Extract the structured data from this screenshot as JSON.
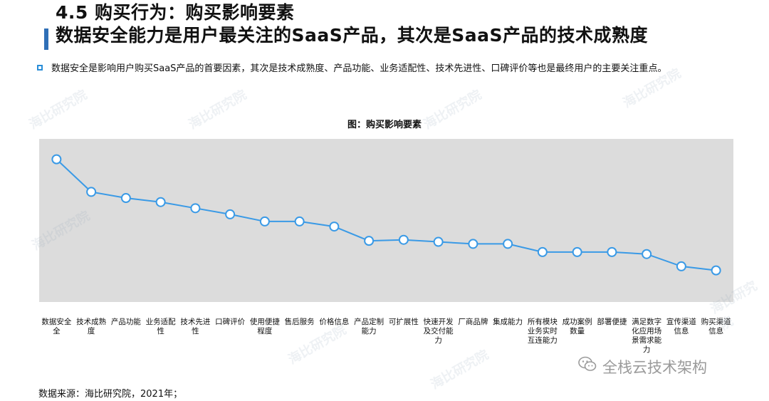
{
  "header": {
    "title_line1": "4.5 购买行为：购买影响要素",
    "title_line2": "数据安全能力是用户最关注的SaaS产品，其次是SaaS产品的技术成熟度"
  },
  "bullet": {
    "text": "数据安全是影响用户购买SaaS产品的首要因素，其次是技术成熟度、产品功能、业务适配性、技术先进性、口碑评价等也是最终用户的主要关注重点。"
  },
  "chart_title": "图：购买影响要素",
  "chart_data": {
    "type": "line",
    "categories": [
      "数据安全全",
      "技术成熟度",
      "产品功能",
      "业务适配性",
      "技术先进性",
      "口碑评价",
      "使用便捷程度",
      "售后服务",
      "价格信息",
      "产品定制能力",
      "可扩展性",
      "快速开发及交付能力",
      "厂商品牌",
      "集成能力",
      "所有模块业务实时互连能力",
      "成功案例数量",
      "部署便捷",
      "满足数字化应用场景需求能力",
      "宣传渠道信息",
      "购买渠道信息"
    ],
    "values": [
      90,
      74,
      71,
      69,
      66,
      63,
      59.5,
      59.5,
      57,
      50,
      50.5,
      49.5,
      48.5,
      48.5,
      44.5,
      44.5,
      44.5,
      43.5,
      37.5,
      35.5
    ],
    "ylim": [
      20,
      100
    ],
    "title": "图：购买影响要素",
    "xlabel": "",
    "ylabel": "",
    "line_color": "#3a9ae6",
    "plot_background": "#dcdcdc"
  },
  "source": "数据来源：海比研究院，2021年；",
  "watermarks": {
    "brand": "海比研究院",
    "wechat_label": "全栈云技术架构",
    "wechat_icon": "wechat-icon"
  }
}
